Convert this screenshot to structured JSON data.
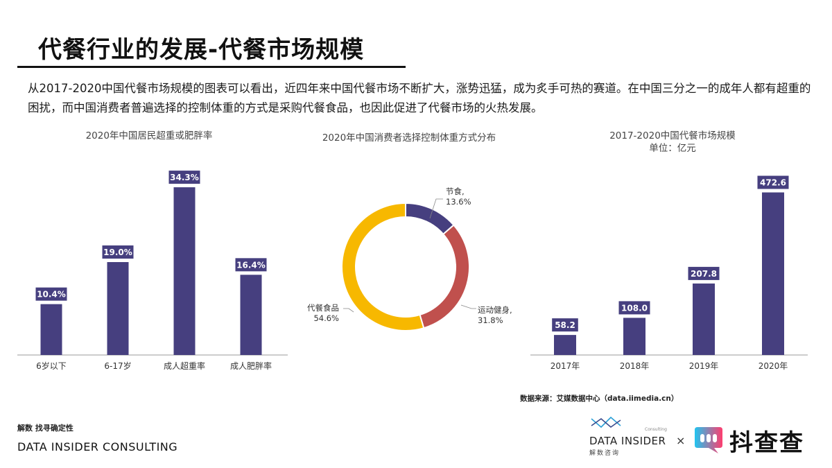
{
  "page": {
    "title": "代餐行业的发展-代餐市场规模",
    "intro": "从2017-2020中国代餐市场规模的图表可以看出，近四年来中国代餐市场不断扩大，涨势迅猛，成为炙手可热的赛道。在中国三分之一的成年人都有超重的困扰，而中国消费者普遍选择的控制体重的方式是采购代餐食品，也因此促进了代餐市场的火热发展。",
    "source": "数据来源：艾媒数据中心（data.iimedia.cn）"
  },
  "footer": {
    "brand_cn": "解数 找寻确定性",
    "brand_en": "DATA INSIDER CONSULTING",
    "logo_main": "DATA INSIDER",
    "logo_sub_cn": "解数咨询",
    "logo_consulting": "Consulting",
    "times": "×",
    "logo2_text": "抖查查"
  },
  "colors": {
    "bar": "#463f7f",
    "jieshi": "#463f7f",
    "yundong": "#c0504d",
    "daican": "#f7b800",
    "axis": "#999999",
    "logo2_gradient": [
      "#20c4f0",
      "#ff3d6e"
    ]
  },
  "chart_data": [
    {
      "type": "bar",
      "title": "2020年中国居民超重或肥胖率",
      "categories": [
        "6岁以下",
        "6-17岁",
        "成人超重率",
        "成人肥胖率"
      ],
      "values": [
        10.4,
        19.0,
        34.3,
        16.4
      ],
      "labels": [
        "10.4%",
        "19.0%",
        "34.3%",
        "16.4%"
      ],
      "unit": "%",
      "ylim": [
        0,
        38
      ],
      "grid": false,
      "legend": "none"
    },
    {
      "type": "pie",
      "title": "2020年中国消费者选择控制体重方式分布",
      "variant": "donut",
      "slices": [
        {
          "label": "节食,",
          "value": 13.6,
          "display": "13.6%"
        },
        {
          "label": "运动健身,",
          "value": 31.8,
          "display": "31.8%"
        },
        {
          "label": "代餐食品",
          "value": 54.6,
          "display": "54.6%"
        }
      ],
      "legend": "none"
    },
    {
      "type": "bar",
      "title": "2017-2020中国代餐市场规模",
      "subtitle": "单位：亿元",
      "categories": [
        "2017年",
        "2018年",
        "2019年",
        "2020年"
      ],
      "values": [
        58.2,
        108.0,
        207.8,
        472.6
      ],
      "labels": [
        "58.2",
        "108.0",
        "207.8",
        "472.6"
      ],
      "ylim": [
        0,
        520
      ],
      "grid": false,
      "legend": "none"
    }
  ]
}
